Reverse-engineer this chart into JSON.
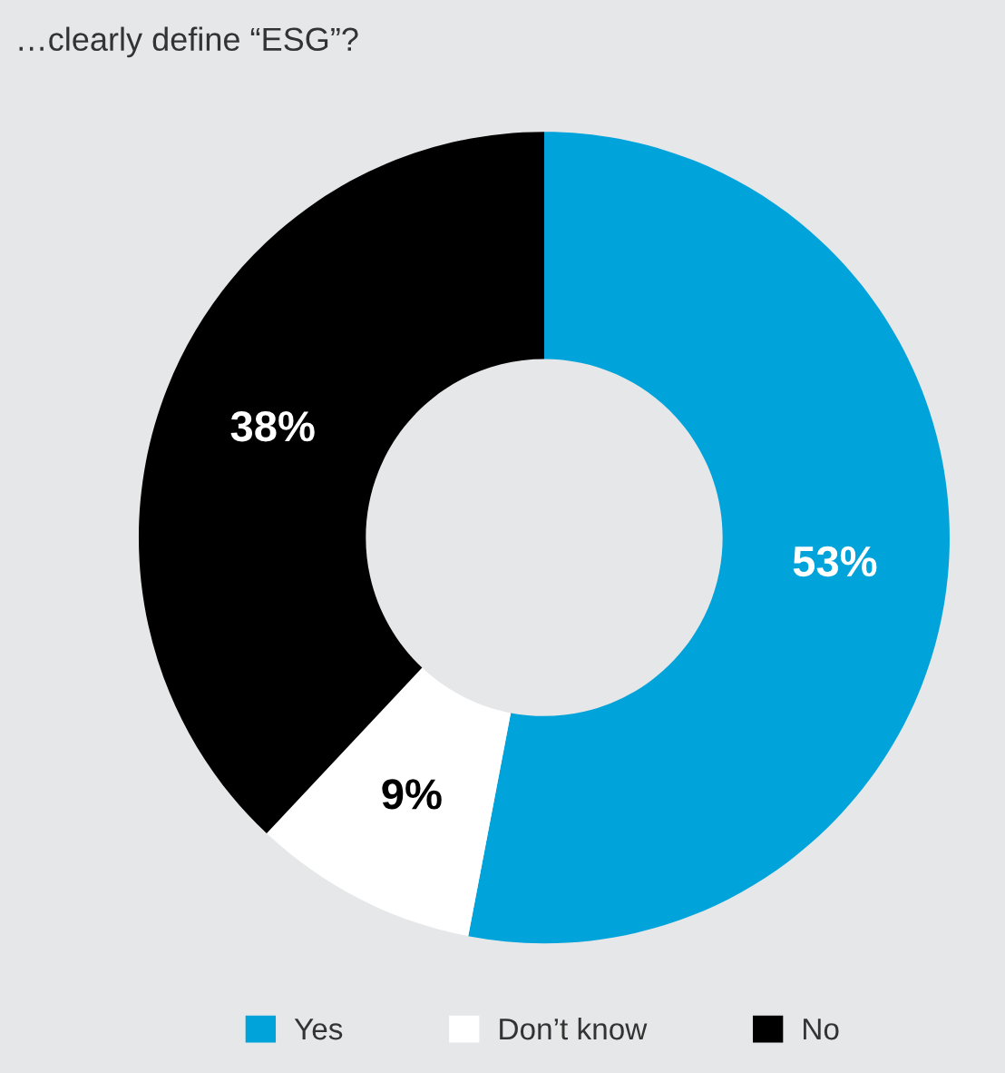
{
  "chart_data": {
    "type": "donut",
    "title": "…clearly define “ESG”?",
    "categories": [
      "Yes",
      "Don’t know",
      "No"
    ],
    "values": [
      53,
      9,
      38
    ],
    "colors": [
      "#00a3da",
      "#ffffff",
      "#000000"
    ],
    "value_labels": [
      "53%",
      "9%",
      "38%"
    ],
    "legend": "bottom"
  }
}
